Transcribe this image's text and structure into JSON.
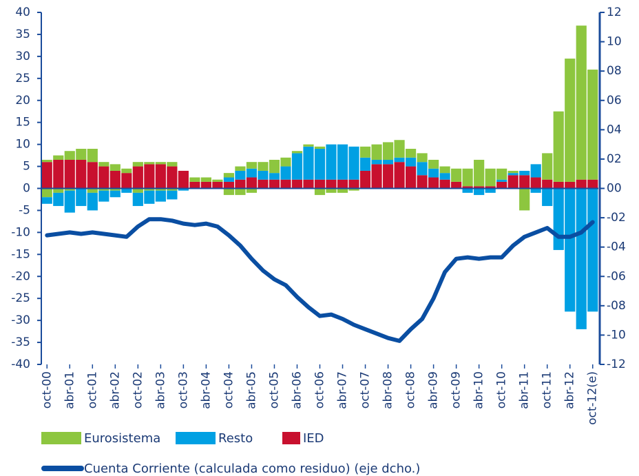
{
  "chart_data": {
    "type": "bar",
    "categories": [
      "oct-00",
      null,
      "abr-01",
      null,
      "oct-01",
      null,
      "abr-02",
      null,
      "oct-02",
      null,
      "abr-03",
      null,
      "oct-03",
      null,
      "abr-04",
      null,
      "oct-04",
      null,
      "abr-05",
      null,
      "oct-05",
      null,
      "abr-06",
      null,
      "oct-06",
      null,
      "abr-07",
      null,
      "oct-07",
      null,
      "abr-08",
      null,
      "oct-08",
      null,
      "abr-09",
      null,
      "oct-09",
      null,
      "abr-10",
      null,
      "oct-10",
      null,
      "abr-11",
      null,
      "oct-11",
      null,
      "abr-12",
      null,
      "oct-12(e)"
    ],
    "series": [
      {
        "name": "Eurosistema",
        "color": "#8dc63f",
        "values": [
          0.5,
          1,
          2,
          2.5,
          3,
          1,
          1.5,
          1,
          1,
          0.5,
          0.5,
          1,
          0,
          1,
          1,
          0.5,
          1,
          1,
          1.5,
          2,
          3,
          2,
          0.5,
          0.5,
          0.5,
          0,
          0,
          0,
          2.5,
          3.5,
          4,
          4,
          2,
          2,
          2,
          1.5,
          3,
          4,
          6,
          4,
          2.5,
          0.5,
          0,
          0,
          6,
          16,
          28,
          35,
          25
        ],
        "negative_values": [
          -2,
          -1,
          -0.5,
          0,
          -1,
          -0.5,
          -0.5,
          0,
          -1,
          -0.5,
          -0.5,
          -0.5,
          0,
          0,
          0,
          0,
          -1.5,
          -1.5,
          -1,
          0,
          0,
          0,
          0,
          0,
          -1.5,
          -1,
          -1,
          -0.5,
          0,
          0,
          0,
          0,
          0,
          0,
          0,
          0,
          0,
          0,
          0,
          0,
          0,
          0,
          -5,
          0,
          0,
          0,
          0,
          0,
          0
        ]
      },
      {
        "name": "Resto",
        "color": "#00a0e3",
        "values": [
          0,
          0,
          0,
          0,
          0,
          0,
          0,
          0,
          0,
          0,
          0,
          0,
          0,
          0,
          0,
          0,
          1,
          2,
          2,
          2,
          1.5,
          3,
          6,
          7.5,
          7,
          8,
          8,
          7.5,
          3,
          1,
          1,
          1,
          2,
          3,
          2,
          1.5,
          0,
          0,
          0,
          0,
          0.5,
          0.5,
          1,
          3,
          0,
          0,
          0,
          0,
          0
        ],
        "negative_values": [
          -1.5,
          -3,
          -5,
          -4,
          -4,
          -2.5,
          -1.5,
          -1,
          -3,
          -3,
          -2.5,
          -2,
          -0.5,
          0,
          0,
          0,
          0,
          0,
          0,
          0,
          0,
          0,
          0,
          0,
          0,
          0,
          0,
          0,
          0,
          0,
          0,
          0,
          0,
          0,
          0,
          0,
          0,
          -1,
          -1.5,
          -1,
          0,
          0,
          0,
          -1,
          -4,
          -14,
          -28,
          -32,
          -28
        ]
      },
      {
        "name": "IED",
        "color": "#c8102e",
        "values": [
          6,
          6.5,
          6.5,
          6.5,
          6,
          5,
          4,
          3.5,
          5,
          5.5,
          5.5,
          5,
          4,
          1.5,
          1.5,
          1.5,
          1.5,
          2,
          2.5,
          2,
          2,
          2,
          2,
          2,
          2,
          2,
          2,
          2,
          4,
          5.5,
          5.5,
          6,
          5,
          3,
          2.5,
          2,
          1.5,
          0.5,
          0.5,
          0.5,
          1.5,
          3,
          3,
          2.5,
          2,
          1.5,
          1.5,
          2,
          2
        ]
      },
      {
        "name": "Cuenta Corriente (calculada como residuo) (eje dcho.)",
        "color": "#0a4ea2",
        "type": "line",
        "axis": "y2",
        "values": [
          -3.2,
          -3.1,
          -3.0,
          -3.1,
          -3.0,
          -3.1,
          -3.2,
          -3.3,
          -2.6,
          -2.1,
          -2.1,
          -2.2,
          -2.4,
          -2.5,
          -2.4,
          -2.6,
          -3.2,
          -3.9,
          -4.8,
          -5.6,
          -6.2,
          -6.6,
          -7.4,
          -8.1,
          -8.7,
          -8.6,
          -8.9,
          -9.3,
          -9.6,
          -9.9,
          -10.2,
          -10.4,
          -9.6,
          -8.9,
          -7.5,
          -5.7,
          -4.8,
          -4.7,
          -4.8,
          -4.7,
          -4.7,
          -3.9,
          -3.3,
          -3.0,
          -2.7,
          -3.3,
          -3.3,
          -3.0,
          -2.3
        ]
      }
    ],
    "ylim": [
      -40,
      40
    ],
    "yticks": [
      -40,
      -35,
      -30,
      -25,
      -20,
      -15,
      -10,
      -5,
      0,
      5,
      10,
      15,
      20,
      25,
      30,
      35,
      40
    ],
    "y2lim": [
      -12,
      12
    ],
    "y2ticks": [
      {
        "value": -12,
        "label": "-12"
      },
      {
        "value": -10,
        "label": "-10"
      },
      {
        "value": -8,
        "label": "-08"
      },
      {
        "value": -6,
        "label": "-06"
      },
      {
        "value": -4,
        "label": "-04"
      },
      {
        "value": -2,
        "label": "-02"
      },
      {
        "value": 0,
        "label": "00"
      },
      {
        "value": 2,
        "label": "02"
      },
      {
        "value": 4,
        "label": "04"
      },
      {
        "value": 6,
        "label": "06"
      },
      {
        "value": 8,
        "label": "08"
      },
      10,
      12
    ],
    "grid": false
  }
}
